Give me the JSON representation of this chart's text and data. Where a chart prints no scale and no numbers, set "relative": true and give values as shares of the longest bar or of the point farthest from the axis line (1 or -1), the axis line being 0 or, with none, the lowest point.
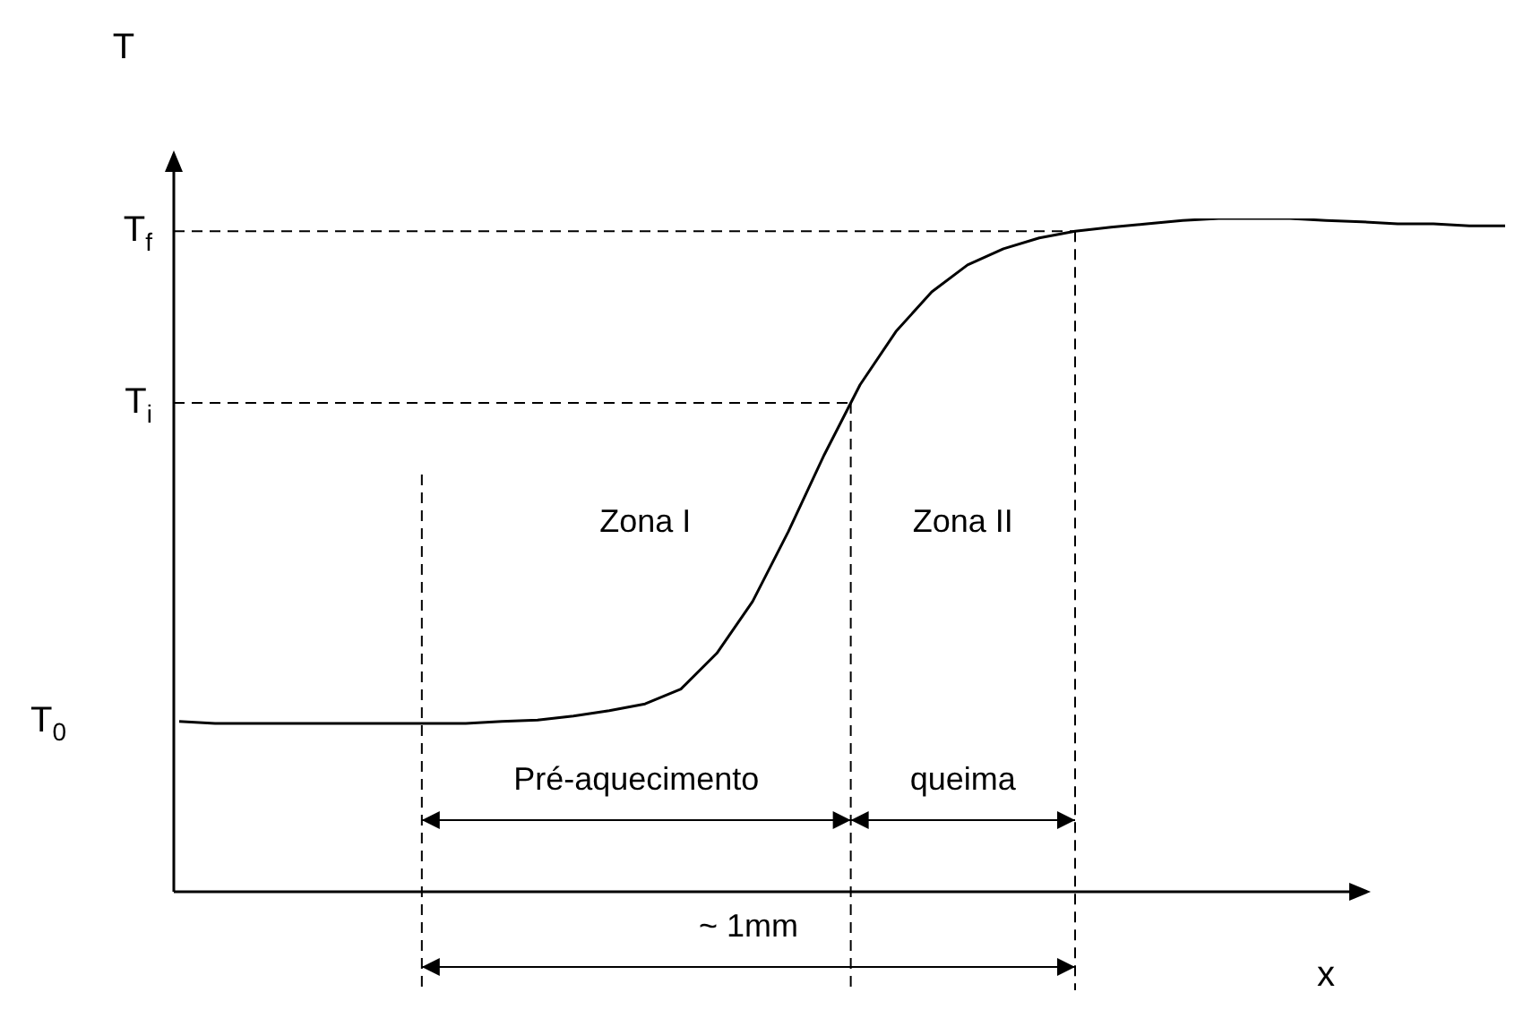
{
  "chart_data": {
    "type": "line",
    "relative": true,
    "xlabel": "x",
    "ylabel": "T",
    "marker": "none",
    "line_style": "solid",
    "categories": [
      null,
      null,
      null,
      null,
      null,
      null,
      null,
      null,
      null,
      null,
      null,
      null,
      null,
      null,
      null,
      null,
      null,
      null,
      null,
      null,
      null,
      null,
      null,
      null,
      null,
      null,
      null,
      null,
      null,
      null,
      null,
      null,
      null,
      null,
      null,
      null,
      null,
      null
    ],
    "series": [
      {
        "color": "#000000",
        "values": [
          0.253,
          0.25,
          0.25,
          0.25,
          0.25,
          0.25,
          0.25,
          0.25,
          0.25,
          0.253,
          0.255,
          0.261,
          0.269,
          0.279,
          0.301,
          0.354,
          0.431,
          0.535,
          0.649,
          0.753,
          0.832,
          0.891,
          0.931,
          0.955,
          0.971,
          0.981,
          0.987,
          0.992,
          0.997,
          1,
          1,
          1,
          0.997,
          0.995,
          0.992,
          0.992,
          0.989,
          0.989
        ]
      }
    ],
    "ref_lines": [
      {
        "axis": "y",
        "value": 0.981,
        "label": "T$_{f}$",
        "line_style": "dashed"
      },
      {
        "axis": "y",
        "value": 0.726,
        "label": "T$_{i}$",
        "line_style": "dashed"
      }
    ],
    "annotations": [
      "T$_{0}$",
      "Zona I",
      "Zona II",
      "Pré-aquecimento",
      "queima",
      "~ 1mm"
    ]
  }
}
